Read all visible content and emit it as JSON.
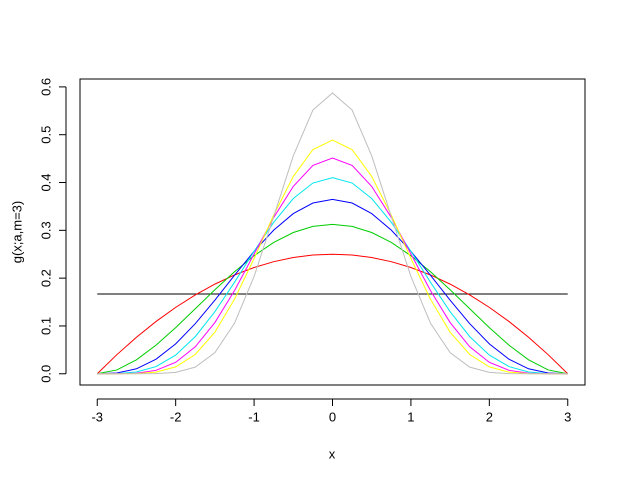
{
  "chart_data": {
    "type": "line",
    "x": [
      -3,
      -2.75,
      -2.5,
      -2.25,
      -2,
      -1.75,
      -1.5,
      -1.25,
      -1,
      -0.75,
      -0.5,
      -0.25,
      0,
      0.25,
      0.5,
      0.75,
      1,
      1.25,
      1.5,
      1.75,
      2,
      2.25,
      2.5,
      2.75,
      3
    ],
    "xlabel": "x",
    "ylabel": "g(x;a,m=3)",
    "xlim": [
      -3.22,
      3.22
    ],
    "ylim": [
      -0.0235,
      0.6165
    ],
    "xticks": [
      -3,
      -2,
      -1,
      0,
      1,
      2,
      3
    ],
    "yticks": [
      {
        "value": 0,
        "label": "0.0"
      },
      0.1,
      0.2,
      0.3,
      0.4,
      0.5,
      0.6
    ],
    "series": [
      {
        "color": "#000000",
        "values": [
          0.1667,
          0.1667,
          0.1667,
          0.1667,
          0.1667,
          0.1667,
          0.1667,
          0.1667,
          0.1667,
          0.1667,
          0.1667,
          0.1667,
          0.1667,
          0.1667,
          0.1667,
          0.1667,
          0.1667,
          0.1667,
          0.1667,
          0.1667,
          0.1667,
          0.1667,
          0.1667,
          0.1667,
          0.1667
        ]
      },
      {
        "color": "#ff0000",
        "values": [
          0,
          0.0399,
          0.0764,
          0.1094,
          0.1389,
          0.1649,
          0.1875,
          0.2066,
          0.2222,
          0.2344,
          0.2431,
          0.2483,
          0.25,
          0.2483,
          0.2431,
          0.2344,
          0.2222,
          0.2066,
          0.1875,
          0.1649,
          0.1389,
          0.1094,
          0.0764,
          0.0399,
          0
        ]
      },
      {
        "color": "#00cd00",
        "values": [
          0,
          0.008,
          0.0292,
          0.0598,
          0.0965,
          0.136,
          0.1758,
          0.2134,
          0.2469,
          0.2747,
          0.2954,
          0.3082,
          0.3125,
          0.3082,
          0.2954,
          0.2747,
          0.2469,
          0.2134,
          0.1758,
          0.136,
          0.0965,
          0.0598,
          0.0292,
          0.008,
          0
        ]
      },
      {
        "color": "#0000ff",
        "values": [
          0,
          0.0015,
          0.0104,
          0.0305,
          0.0625,
          0.1047,
          0.1538,
          0.2058,
          0.2561,
          0.3004,
          0.335,
          0.3571,
          0.3646,
          0.3571,
          0.335,
          0.3004,
          0.2561,
          0.2058,
          0.1538,
          0.1047,
          0.0625,
          0.0305,
          0.0104,
          0.0015,
          0
        ]
      },
      {
        "color": "#00e5ee",
        "values": [
          0,
          0.0003,
          0.0036,
          0.015,
          0.0391,
          0.0777,
          0.1298,
          0.1913,
          0.2561,
          0.3168,
          0.3665,
          0.3989,
          0.4102,
          0.3989,
          0.3665,
          0.3168,
          0.2561,
          0.1913,
          0.1298,
          0.0777,
          0.0391,
          0.015,
          0.0036,
          0.0003,
          0
        ]
      },
      {
        "color": "#ff00ff",
        "values": [
          0,
          0,
          0.0012,
          0.0072,
          0.0239,
          0.0564,
          0.1071,
          0.1739,
          0.2504,
          0.3267,
          0.3919,
          0.4357,
          0.4512,
          0.4357,
          0.3919,
          0.3267,
          0.2504,
          0.1739,
          0.1071,
          0.0564,
          0.0239,
          0.0072,
          0.0012,
          0,
          0
        ]
      },
      {
        "color": "#ffff00",
        "values": [
          0,
          0,
          0.0004,
          0.0034,
          0.0144,
          0.0403,
          0.087,
          0.1557,
          0.2411,
          0.3318,
          0.4128,
          0.4688,
          0.4888,
          0.4688,
          0.4128,
          0.3318,
          0.2411,
          0.1557,
          0.087,
          0.0403,
          0.0144,
          0.0034,
          0.0004,
          0,
          0
        ]
      },
      {
        "color": "#bebebe",
        "values": [
          0,
          0,
          0,
          0.0003,
          0.003,
          0.0139,
          0.0441,
          0.1056,
          0.2035,
          0.3286,
          0.4558,
          0.5516,
          0.5873,
          0.5516,
          0.4558,
          0.3286,
          0.2035,
          0.1056,
          0.0441,
          0.0139,
          0.003,
          0.0003,
          0,
          0,
          0
        ]
      }
    ]
  }
}
